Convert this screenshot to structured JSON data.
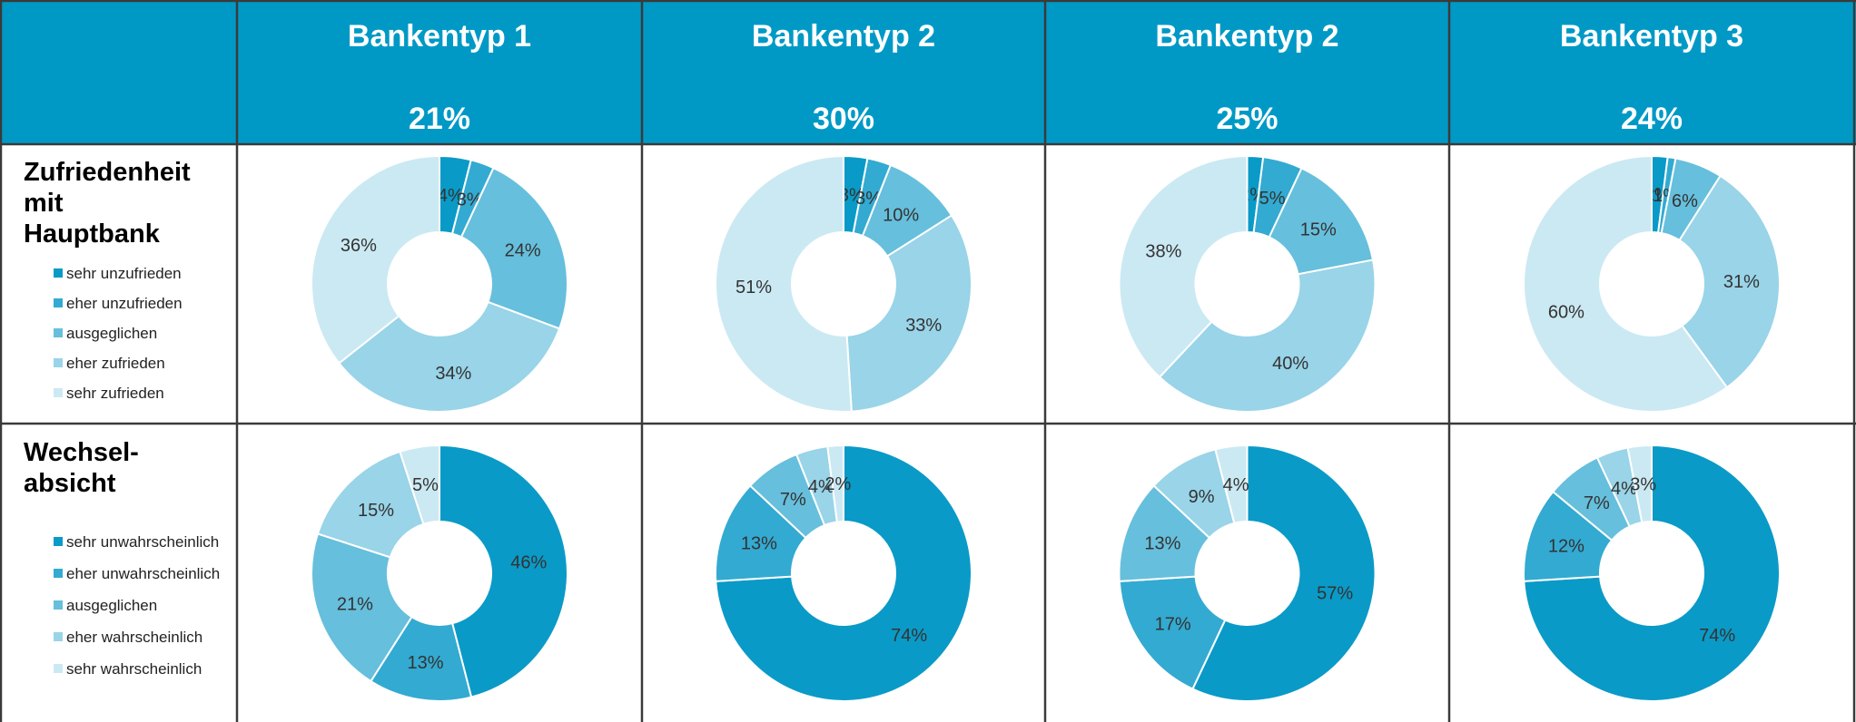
{
  "header": {
    "shares": [
      "21%",
      "30%",
      "25%",
      "24%"
    ]
  },
  "chart_data": [
    {
      "type": "pie",
      "title": "Zufriedenheit\nmit\nHauptbank",
      "categories": [
        "sehr unzufrieden",
        "eher unzufrieden",
        "ausgeglichen",
        "eher zufrieden",
        "sehr zufrieden"
      ],
      "colors": [
        "#0a9ac7",
        "#33aad1",
        "#66bfdc",
        "#99d4e8",
        "#cbe9f3"
      ],
      "series": [
        {
          "name": "Bankentyp 1",
          "values": [
            4,
            3,
            24,
            34,
            36
          ],
          "value_labels": [
            "4%",
            "3%",
            "24%",
            "34%",
            "36%"
          ]
        },
        {
          "name": "Bankentyp 2",
          "values": [
            3,
            3,
            10,
            33,
            51
          ],
          "value_labels": [
            "3%",
            "3%",
            "10%",
            "33%",
            "51%"
          ]
        },
        {
          "name": "Bankentyp 2",
          "values": [
            2,
            5,
            15,
            40,
            38
          ],
          "value_labels": [
            "2%",
            "5%",
            "15%",
            "40%",
            "38%"
          ]
        },
        {
          "name": "Bankentyp 3",
          "values": [
            2,
            1,
            6,
            31,
            60
          ],
          "value_labels": [
            "2%",
            "1%",
            "6%",
            "31%",
            "60%"
          ]
        }
      ]
    },
    {
      "type": "pie",
      "title": "Wechsel-\nabsicht",
      "categories": [
        "sehr unwahrscheinlich",
        "eher unwahrscheinlich",
        "ausgeglichen",
        "eher wahrscheinlich",
        "sehr wahrscheinlich"
      ],
      "colors": [
        "#0a9ac7",
        "#33aad1",
        "#66bfdc",
        "#99d4e8",
        "#cbe9f3"
      ],
      "series": [
        {
          "values": [
            46,
            13,
            21,
            15,
            5
          ],
          "value_labels": [
            "46%",
            "13%",
            "21%",
            "15%",
            "5%"
          ]
        },
        {
          "values": [
            74,
            13,
            7,
            4,
            2
          ],
          "value_labels": [
            "74%",
            "13%",
            "7%",
            "4%",
            "2%"
          ]
        },
        {
          "values": [
            57,
            17,
            13,
            9,
            4
          ],
          "value_labels": [
            "57%",
            "17%",
            "13%",
            "9%",
            "4%"
          ]
        },
        {
          "values": [
            74,
            12,
            7,
            4,
            3
          ],
          "value_labels": [
            "74%",
            "12%",
            "7%",
            "4%",
            "3%"
          ]
        }
      ]
    }
  ]
}
